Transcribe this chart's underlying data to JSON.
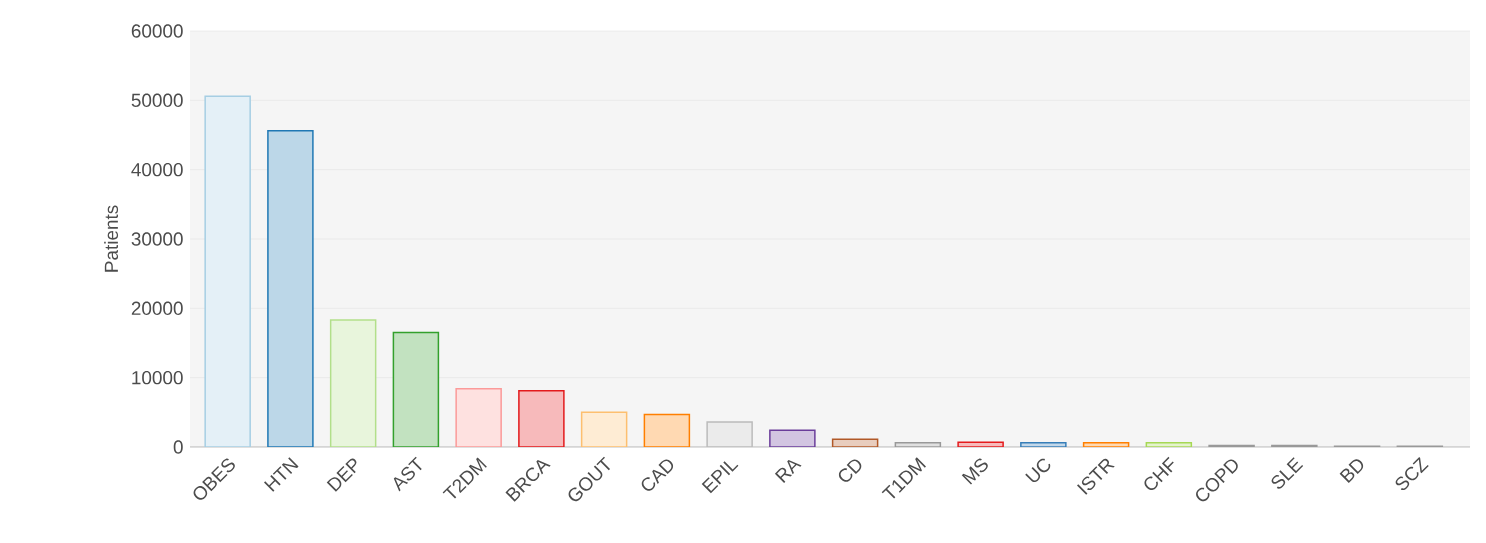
{
  "chart_data": {
    "type": "bar",
    "ylabel": "Patients",
    "categories": [
      "OBES",
      "HTN",
      "DEP",
      "AST",
      "T2DM",
      "BRCA",
      "GOUT",
      "CAD",
      "EPIL",
      "RA",
      "CD",
      "T1DM",
      "MS",
      "UC",
      "ISTR",
      "CHF",
      "COPD",
      "SLE",
      "BD",
      "SCZ"
    ],
    "values": [
      50600,
      45600,
      18300,
      16500,
      8400,
      8100,
      5000,
      4700,
      3600,
      2400,
      1100,
      600,
      700,
      600,
      600,
      600,
      200,
      200,
      100,
      100
    ],
    "colors": [
      "#a6cee3",
      "#1f78b4",
      "#b2df8a",
      "#33a02c",
      "#fb9a99",
      "#e31a1c",
      "#fdbf6f",
      "#ff7f00",
      "#bbbbbb",
      "#6a3d9a",
      "#b15928",
      "#999999",
      "#e41a1c",
      "#377eb8",
      "#ff7f00",
      "#a6d854",
      "#999999",
      "#999999",
      "#999999",
      "#999999"
    ],
    "ylim": [
      0,
      60000
    ],
    "yticks": [
      0,
      10000,
      20000,
      30000,
      40000,
      50000,
      60000
    ],
    "grid": "y"
  }
}
